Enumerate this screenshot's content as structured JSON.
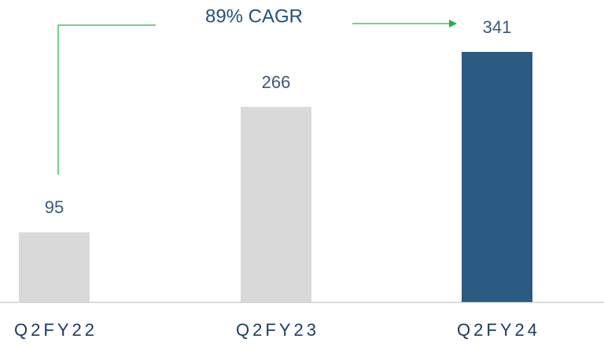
{
  "chart_data": {
    "type": "bar",
    "categories": [
      "Q2FY22",
      "Q2FY23",
      "Q2FY24"
    ],
    "values": [
      95,
      266,
      341
    ],
    "colors": [
      "#d9d9d9",
      "#d9d9d9",
      "#2b5a83"
    ],
    "annotation": "89% CAGR"
  }
}
